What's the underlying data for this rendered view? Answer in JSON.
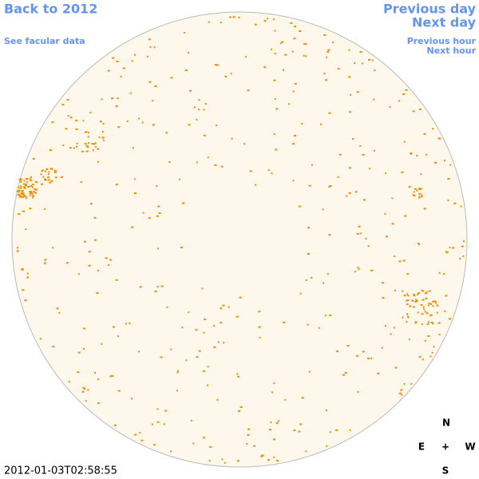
{
  "nav": {
    "back": "Back to 2012",
    "facular": "See facular data",
    "previous_day": "Previous day",
    "next_day": "Next day",
    "previous_hour": "Previous hour",
    "next_hour": "Next hour"
  },
  "compass": {
    "north": "N",
    "east": "E",
    "center": "+",
    "west": "W",
    "south": "S"
  },
  "timestamp": "2012-01-03T02:58:55"
}
